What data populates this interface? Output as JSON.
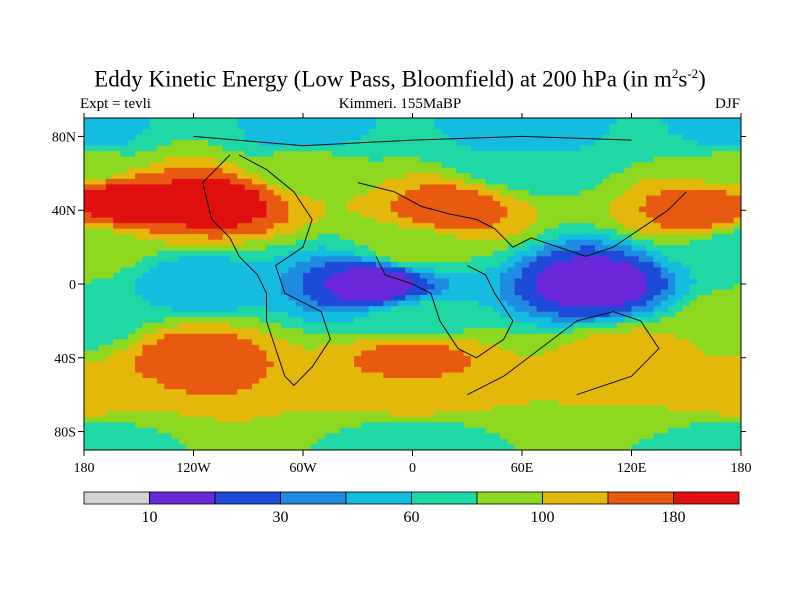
{
  "chart_data": {
    "type": "heatmap",
    "title_main": "Eddy Kinetic Energy (Low Pass, Bloomfield) at 200 hPa (in m",
    "title_unit_sup1": "2",
    "title_unit_s": "s",
    "title_unit_sup2": "-2",
    "title_close": ")",
    "left_label": "Expt = tevli",
    "center_label": "Kimmeri. 155MaBP",
    "right_label": "DJF",
    "xlim": [
      -180,
      180
    ],
    "ylim": [
      -90,
      90
    ],
    "x_ticks": [
      {
        "value": -180,
        "label": "180"
      },
      {
        "value": -120,
        "label": "120W"
      },
      {
        "value": -60,
        "label": "60W"
      },
      {
        "value": 0,
        "label": "0"
      },
      {
        "value": 60,
        "label": "60E"
      },
      {
        "value": 120,
        "label": "120E"
      },
      {
        "value": 180,
        "label": "180"
      }
    ],
    "y_ticks": [
      {
        "value": 80,
        "label": "80N"
      },
      {
        "value": 40,
        "label": "40N"
      },
      {
        "value": 0,
        "label": "0"
      },
      {
        "value": -40,
        "label": "40S"
      },
      {
        "value": -80,
        "label": "80S"
      }
    ],
    "colors": [
      "#d4d4d4",
      "#6a28d8",
      "#1e4ad8",
      "#1e8ce0",
      "#14bce0",
      "#20d8a6",
      "#8cd820",
      "#e4b80a",
      "#e85a10",
      "#e01010"
    ],
    "colorbar_labels": [
      {
        "index": 1,
        "label": "10"
      },
      {
        "index": 3,
        "label": "30"
      },
      {
        "index": 5,
        "label": "60"
      },
      {
        "index": 7,
        "label": "100"
      },
      {
        "index": 9,
        "label": "180"
      }
    ],
    "field": [
      {
        "lat": 80,
        "lon": -180,
        "bin": 4
      },
      {
        "lat": 80,
        "lon": -60,
        "bin": 4
      },
      {
        "lat": 80,
        "lon": 60,
        "bin": 4
      },
      {
        "lat": 80,
        "lon": 180,
        "bin": 4
      },
      {
        "lat": 65,
        "lon": -180,
        "bin": 6
      },
      {
        "lat": 65,
        "lon": -60,
        "bin": 6
      },
      {
        "lat": 65,
        "lon": 60,
        "bin": 5
      },
      {
        "lat": 65,
        "lon": 180,
        "bin": 6
      },
      {
        "lat": 45,
        "lon": -160,
        "bin": 9
      },
      {
        "lat": 45,
        "lon": -110,
        "bin": 9
      },
      {
        "lat": 40,
        "lon": 20,
        "bin": 8
      },
      {
        "lat": 40,
        "lon": 160,
        "bin": 8
      },
      {
        "lat": 20,
        "lon": -180,
        "bin": 6
      },
      {
        "lat": 20,
        "lon": 0,
        "bin": 6
      },
      {
        "lat": 20,
        "lon": 180,
        "bin": 5
      },
      {
        "lat": 0,
        "lon": -20,
        "bin": 1
      },
      {
        "lat": 0,
        "lon": 100,
        "bin": 1
      },
      {
        "lat": 0,
        "lon": -120,
        "bin": 4
      },
      {
        "lat": -20,
        "lon": -180,
        "bin": 5
      },
      {
        "lat": -20,
        "lon": 0,
        "bin": 5
      },
      {
        "lat": -20,
        "lon": 180,
        "bin": 6
      },
      {
        "lat": -40,
        "lon": -120,
        "bin": 8
      },
      {
        "lat": -40,
        "lon": 0,
        "bin": 8
      },
      {
        "lat": -40,
        "lon": 120,
        "bin": 7
      },
      {
        "lat": -60,
        "lon": -180,
        "bin": 7
      },
      {
        "lat": -60,
        "lon": 0,
        "bin": 7
      },
      {
        "lat": -60,
        "lon": 180,
        "bin": 7
      },
      {
        "lat": -85,
        "lon": -180,
        "bin": 5
      },
      {
        "lat": -85,
        "lon": 0,
        "bin": 5
      },
      {
        "lat": -85,
        "lon": 180,
        "bin": 5
      }
    ]
  }
}
